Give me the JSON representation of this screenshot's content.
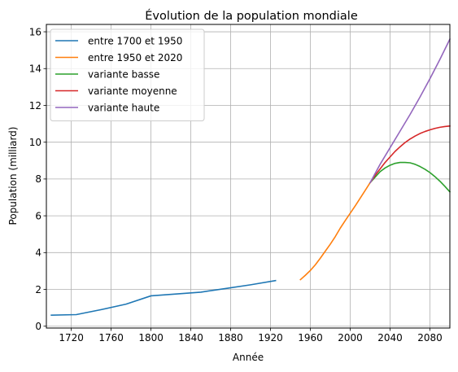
{
  "chart_data": {
    "type": "line",
    "title": "Évolution de la population mondiale",
    "xlabel": "Année",
    "ylabel": "Population (milliard)",
    "xlim": [
      1695,
      2100
    ],
    "ylim": [
      -0.1,
      16.4
    ],
    "xticks": [
      1720,
      1760,
      1800,
      1840,
      1880,
      1920,
      1960,
      2000,
      2040,
      2080
    ],
    "yticks": [
      0,
      2,
      4,
      6,
      8,
      10,
      12,
      14,
      16
    ],
    "grid": true,
    "legend_position": "top-left",
    "series": [
      {
        "name": "entre 1700 et 1950",
        "color": "#1f77b4",
        "points": [
          [
            1700,
            0.6
          ],
          [
            1725,
            0.63
          ],
          [
            1750,
            0.9
          ],
          [
            1775,
            1.2
          ],
          [
            1800,
            1.65
          ],
          [
            1825,
            1.75
          ],
          [
            1850,
            1.85
          ],
          [
            1875,
            2.05
          ],
          [
            1900,
            2.25
          ],
          [
            1925,
            2.48
          ]
        ]
      },
      {
        "name": "entre 1950 et 2020",
        "color": "#ff7f0e",
        "points": [
          [
            1950,
            2.53
          ],
          [
            1955,
            2.77
          ],
          [
            1960,
            3.03
          ],
          [
            1965,
            3.34
          ],
          [
            1970,
            3.7
          ],
          [
            1975,
            4.08
          ],
          [
            1980,
            4.46
          ],
          [
            1985,
            4.87
          ],
          [
            1990,
            5.33
          ],
          [
            1995,
            5.74
          ],
          [
            2000,
            6.14
          ],
          [
            2005,
            6.54
          ],
          [
            2010,
            6.96
          ],
          [
            2015,
            7.38
          ],
          [
            2020,
            7.8
          ]
        ]
      },
      {
        "name": "variante basse",
        "color": "#2ca02c",
        "points": [
          [
            2020,
            7.8
          ],
          [
            2025,
            8.1
          ],
          [
            2030,
            8.4
          ],
          [
            2035,
            8.6
          ],
          [
            2040,
            8.75
          ],
          [
            2045,
            8.85
          ],
          [
            2050,
            8.9
          ],
          [
            2055,
            8.9
          ],
          [
            2060,
            8.88
          ],
          [
            2065,
            8.8
          ],
          [
            2070,
            8.68
          ],
          [
            2075,
            8.53
          ],
          [
            2080,
            8.35
          ],
          [
            2085,
            8.13
          ],
          [
            2090,
            7.88
          ],
          [
            2095,
            7.6
          ],
          [
            2100,
            7.3
          ]
        ]
      },
      {
        "name": "variante moyenne",
        "color": "#d62728",
        "points": [
          [
            2020,
            7.8
          ],
          [
            2025,
            8.2
          ],
          [
            2030,
            8.55
          ],
          [
            2035,
            8.9
          ],
          [
            2040,
            9.2
          ],
          [
            2045,
            9.5
          ],
          [
            2050,
            9.75
          ],
          [
            2055,
            9.98
          ],
          [
            2060,
            10.17
          ],
          [
            2065,
            10.33
          ],
          [
            2070,
            10.47
          ],
          [
            2075,
            10.58
          ],
          [
            2080,
            10.67
          ],
          [
            2085,
            10.75
          ],
          [
            2090,
            10.81
          ],
          [
            2095,
            10.85
          ],
          [
            2100,
            10.88
          ]
        ]
      },
      {
        "name": "variante haute",
        "color": "#9467bd",
        "points": [
          [
            2020,
            7.8
          ],
          [
            2030,
            8.8
          ],
          [
            2040,
            9.7
          ],
          [
            2050,
            10.6
          ],
          [
            2060,
            11.5
          ],
          [
            2070,
            12.45
          ],
          [
            2080,
            13.45
          ],
          [
            2090,
            14.5
          ],
          [
            2100,
            15.6
          ]
        ]
      }
    ]
  }
}
